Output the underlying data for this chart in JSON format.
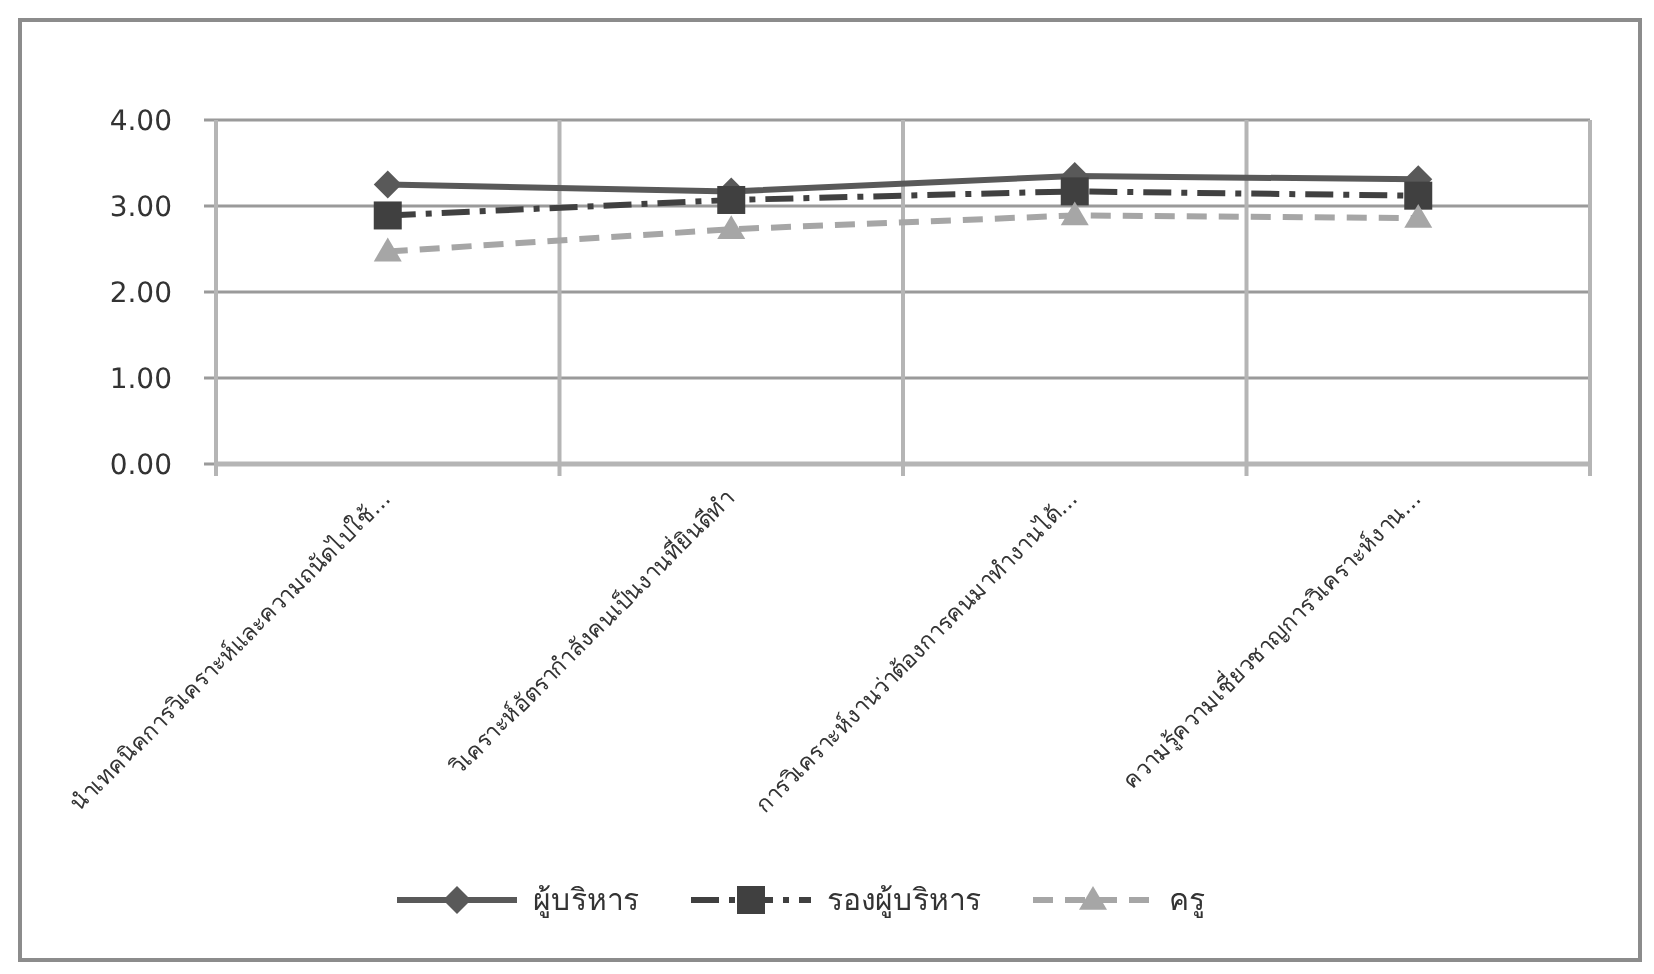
{
  "chart_data": {
    "type": "line",
    "categories": [
      "นำเทคนิคการวิเคราะห์และความถนัดไปใช้...",
      "วิเคราะห์อัตรากำลังคนเป็นงานที่ยินดีทำ",
      "การวิเคราะห์งานว่าต้องการคนมาทำงานได้...",
      "ความรู้ความเชี่ยวชาญการวิเคราะห์งาน..."
    ],
    "series": [
      {
        "name": "ผู้บริหาร",
        "color": "#595959",
        "marker": "diamond",
        "line_style": "solid",
        "values": [
          3.25,
          3.17,
          3.35,
          3.31
        ]
      },
      {
        "name": "รองผู้บริหาร",
        "color": "#404040",
        "marker": "square",
        "line_style": "dashdot",
        "values": [
          2.89,
          3.07,
          3.17,
          3.12
        ]
      },
      {
        "name": "ครู",
        "color": "#a6a6a6",
        "marker": "triangle",
        "line_style": "dashed",
        "values": [
          2.47,
          2.73,
          2.89,
          2.86
        ]
      }
    ],
    "ylim": [
      0,
      4
    ],
    "yticks": [
      {
        "value": 0,
        "label": "0.00"
      },
      {
        "value": 1,
        "label": "1.00"
      },
      {
        "value": 2,
        "label": "2.00"
      },
      {
        "value": 3,
        "label": "3.00"
      },
      {
        "value": 4,
        "label": "4.00"
      }
    ],
    "grid": true,
    "legend": "bottom"
  }
}
